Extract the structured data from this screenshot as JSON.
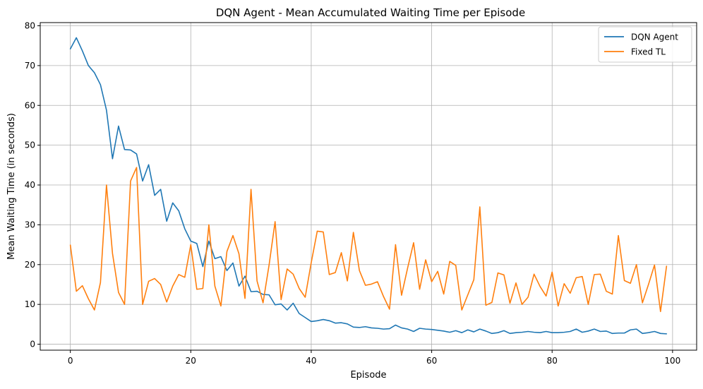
{
  "chart_data": {
    "type": "line",
    "title": "DQN Agent - Mean Accumulated Waiting Time per Episode",
    "xlabel": "Episode",
    "ylabel": "Mean Waiting Time (in seconds)",
    "xlim": [
      -5,
      104
    ],
    "ylim": [
      -1.5,
      80.8
    ],
    "x_ticks": [
      0,
      20,
      40,
      60,
      80,
      100
    ],
    "y_ticks": [
      0,
      10,
      20,
      30,
      40,
      50,
      60,
      70,
      80
    ],
    "grid": true,
    "legend_position": "top-right",
    "x": [
      0,
      1,
      2,
      3,
      4,
      5,
      6,
      7,
      8,
      9,
      10,
      11,
      12,
      13,
      14,
      15,
      16,
      17,
      18,
      19,
      20,
      21,
      22,
      23,
      24,
      25,
      26,
      27,
      28,
      29,
      30,
      31,
      32,
      33,
      34,
      35,
      36,
      37,
      38,
      39,
      40,
      41,
      42,
      43,
      44,
      45,
      46,
      47,
      48,
      49,
      50,
      51,
      52,
      53,
      54,
      55,
      56,
      57,
      58,
      59,
      60,
      61,
      62,
      63,
      64,
      65,
      66,
      67,
      68,
      69,
      70,
      71,
      72,
      73,
      74,
      75,
      76,
      77,
      78,
      79,
      80,
      81,
      82,
      83,
      84,
      85,
      86,
      87,
      88,
      89,
      90,
      91,
      92,
      93,
      94,
      95,
      96,
      97,
      98,
      99
    ],
    "series": [
      {
        "name": "DQN Agent",
        "color": "#1f77b4",
        "values": [
          74.2,
          77.0,
          73.7,
          70.0,
          68.2,
          65.2,
          58.8,
          46.6,
          54.8,
          48.9,
          48.8,
          47.8,
          41.0,
          45.1,
          37.4,
          38.9,
          30.9,
          35.5,
          33.5,
          29.0,
          25.9,
          25.3,
          19.5,
          25.9,
          21.5,
          22.0,
          18.5,
          20.4,
          14.6,
          17.1,
          13.2,
          13.3,
          12.5,
          12.4,
          9.9,
          10.1,
          8.6,
          10.3,
          7.7,
          6.7,
          5.7,
          5.9,
          6.2,
          5.9,
          5.3,
          5.4,
          5.1,
          4.3,
          4.2,
          4.4,
          4.1,
          4.0,
          3.8,
          3.9,
          4.8,
          4.1,
          3.8,
          3.2,
          4.0,
          3.8,
          3.7,
          3.5,
          3.3,
          3.0,
          3.4,
          2.9,
          3.6,
          3.1,
          3.8,
          3.3,
          2.7,
          2.9,
          3.4,
          2.7,
          2.9,
          3.0,
          3.2,
          3.0,
          2.9,
          3.2,
          2.9,
          2.9,
          3.0,
          3.2,
          3.8,
          3.0,
          3.3,
          3.8,
          3.2,
          3.3,
          2.7,
          2.8,
          2.8,
          3.6,
          3.8,
          2.7,
          2.9,
          3.2,
          2.7,
          2.6
        ]
      },
      {
        "name": "Fixed TL",
        "color": "#ff7f0e",
        "values": [
          24.9,
          13.3,
          14.7,
          11.4,
          8.6,
          15.5,
          40.0,
          22.8,
          13.0,
          10.0,
          41.0,
          44.4,
          10.0,
          15.8,
          16.5,
          15.0,
          10.6,
          14.6,
          17.5,
          16.8,
          25.0,
          13.8,
          14.0,
          30.0,
          14.6,
          9.6,
          23.3,
          27.3,
          22.7,
          11.5,
          38.9,
          15.9,
          10.4,
          19.9,
          30.8,
          11.2,
          18.9,
          17.6,
          14.0,
          11.8,
          20.5,
          28.4,
          28.2,
          17.5,
          18.0,
          23.0,
          15.9,
          28.1,
          18.5,
          14.8,
          15.1,
          15.7,
          12.0,
          8.8,
          25.0,
          12.3,
          19.1,
          25.5,
          13.8,
          21.2,
          15.7,
          18.3,
          12.6,
          20.8,
          19.8,
          8.6,
          12.4,
          16.2,
          34.5,
          9.8,
          10.5,
          17.9,
          17.4,
          10.3,
          15.4,
          10.0,
          11.8,
          17.6,
          14.5,
          12.1,
          18.1,
          9.6,
          15.2,
          12.8,
          16.7,
          17.0,
          10.0,
          17.5,
          17.6,
          13.3,
          12.6,
          27.3,
          16.0,
          15.3,
          20.0,
          10.4,
          15.0,
          19.9,
          8.2,
          19.6
        ]
      }
    ]
  }
}
